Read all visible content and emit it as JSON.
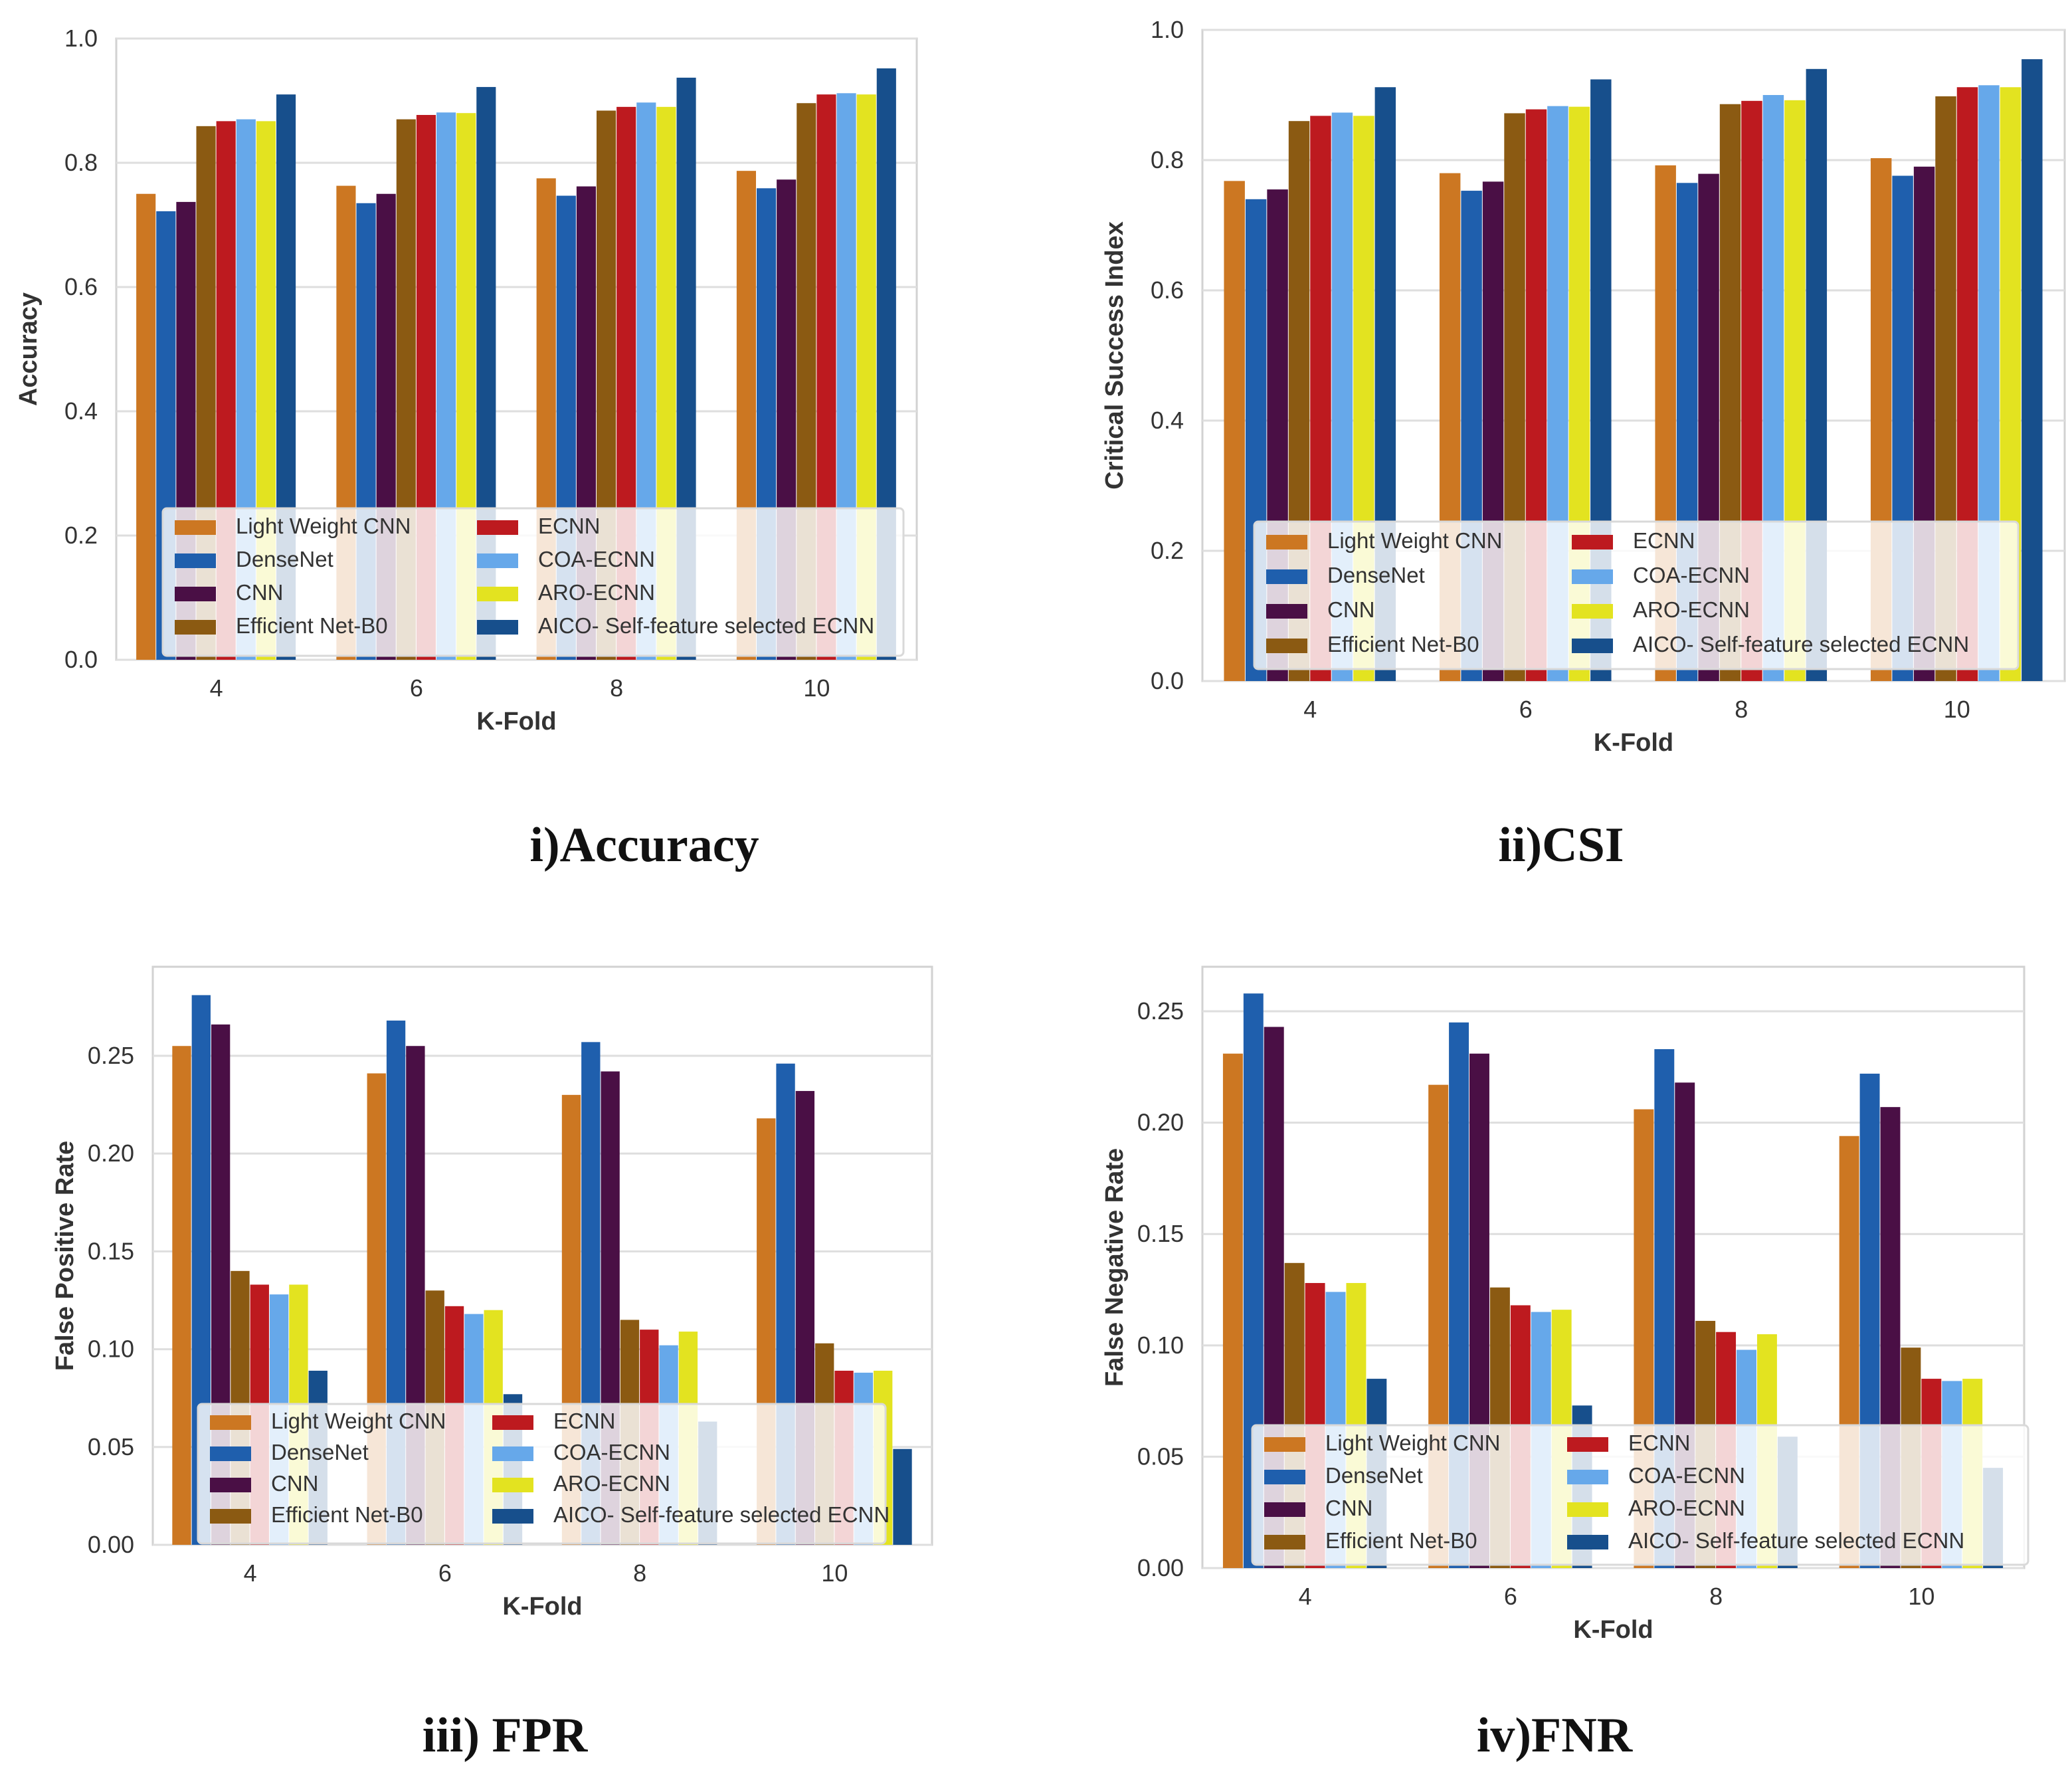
{
  "colors": {
    "Light Weight CNN": "#cc7722",
    "DenseNet": "#1f5fad",
    "CNN": "#4a0f45",
    "Efficient Net-B0": "#8b5a12",
    "ECNN": "#bd1a1f",
    "COA-ECNN": "#66a8ea",
    "ARO-ECNN": "#e3e320",
    "AICO- Self-feature selected ECNN": "#174f8c"
  },
  "chart_data": [
    {
      "id": "accuracy",
      "type": "bar",
      "caption": "i)Accuracy",
      "title": "",
      "xlabel": "K-Fold",
      "ylabel": "Accuracy",
      "categories": [
        "4",
        "6",
        "8",
        "10"
      ],
      "ylim": [
        0,
        1.0
      ],
      "yticks": [
        "0.0",
        "0.2",
        "0.4",
        "0.6",
        "0.8",
        "1.0"
      ],
      "grid": true,
      "legend_position": "lower-center",
      "legend_columns": [
        [
          "Light Weight CNN",
          "DenseNet",
          "CNN",
          "Efficient Net-B0"
        ],
        [
          "ECNN",
          "COA-ECNN",
          "ARO-ECNN",
          "AICO- Self-feature selected ECNN"
        ]
      ],
      "series": [
        {
          "name": "Light Weight CNN",
          "values": [
            0.75,
            0.763,
            0.775,
            0.787
          ]
        },
        {
          "name": "DenseNet",
          "values": [
            0.722,
            0.735,
            0.747,
            0.759
          ]
        },
        {
          "name": "CNN",
          "values": [
            0.737,
            0.75,
            0.762,
            0.773
          ]
        },
        {
          "name": "Efficient Net-B0",
          "values": [
            0.859,
            0.87,
            0.884,
            0.896
          ]
        },
        {
          "name": "ECNN",
          "values": [
            0.867,
            0.877,
            0.89,
            0.91
          ]
        },
        {
          "name": "COA-ECNN",
          "values": [
            0.87,
            0.881,
            0.897,
            0.912
          ]
        },
        {
          "name": "ARO-ECNN",
          "values": [
            0.867,
            0.88,
            0.89,
            0.91
          ]
        },
        {
          "name": "AICO- Self-feature selected ECNN",
          "values": [
            0.91,
            0.922,
            0.937,
            0.952
          ]
        }
      ]
    },
    {
      "id": "csi",
      "type": "bar",
      "caption": "ii)CSI",
      "title": "",
      "xlabel": "K-Fold",
      "ylabel": "Critical Success Index",
      "categories": [
        "4",
        "6",
        "8",
        "10"
      ],
      "ylim": [
        0,
        1.0
      ],
      "yticks": [
        "0.0",
        "0.2",
        "0.4",
        "0.6",
        "0.8",
        "1.0"
      ],
      "grid": true,
      "legend_position": "lower-center",
      "legend_columns": [
        [
          "Light Weight CNN",
          "DenseNet",
          "CNN",
          "Efficient Net-B0"
        ],
        [
          "ECNN",
          "COA-ECNN",
          "ARO-ECNN",
          "AICO- Self-feature selected ECNN"
        ]
      ],
      "series": [
        {
          "name": "Light Weight CNN",
          "values": [
            0.768,
            0.78,
            0.792,
            0.803
          ]
        },
        {
          "name": "DenseNet",
          "values": [
            0.74,
            0.753,
            0.765,
            0.776
          ]
        },
        {
          "name": "CNN",
          "values": [
            0.755,
            0.767,
            0.779,
            0.79
          ]
        },
        {
          "name": "Efficient Net-B0",
          "values": [
            0.86,
            0.872,
            0.886,
            0.898
          ]
        },
        {
          "name": "ECNN",
          "values": [
            0.868,
            0.878,
            0.891,
            0.912
          ]
        },
        {
          "name": "COA-ECNN",
          "values": [
            0.873,
            0.883,
            0.9,
            0.915
          ]
        },
        {
          "name": "ARO-ECNN",
          "values": [
            0.868,
            0.882,
            0.892,
            0.912
          ]
        },
        {
          "name": "AICO- Self-feature selected ECNN",
          "values": [
            0.912,
            0.924,
            0.94,
            0.955
          ]
        }
      ]
    },
    {
      "id": "fpr",
      "type": "bar",
      "caption": "iii) FPR",
      "title": "",
      "xlabel": "K-Fold",
      "ylabel": "False Positive Rate",
      "categories": [
        "4",
        "6",
        "8",
        "10"
      ],
      "ylim": [
        0,
        0.2955
      ],
      "yticks": [
        "0.00",
        "0.05",
        "0.10",
        "0.15",
        "0.20",
        "0.25"
      ],
      "grid": true,
      "legend_position": "lower-center",
      "legend_columns": [
        [
          "Light Weight CNN",
          "DenseNet",
          "CNN",
          "Efficient Net-B0"
        ],
        [
          "ECNN",
          "COA-ECNN",
          "ARO-ECNN",
          "AICO- Self-feature selected ECNN"
        ]
      ],
      "series": [
        {
          "name": "Light Weight CNN",
          "values": [
            0.255,
            0.241,
            0.23,
            0.218
          ]
        },
        {
          "name": "DenseNet",
          "values": [
            0.281,
            0.268,
            0.257,
            0.246
          ]
        },
        {
          "name": "CNN",
          "values": [
            0.266,
            0.255,
            0.242,
            0.232
          ]
        },
        {
          "name": "Efficient Net-B0",
          "values": [
            0.14,
            0.13,
            0.115,
            0.103
          ]
        },
        {
          "name": "ECNN",
          "values": [
            0.133,
            0.122,
            0.11,
            0.089
          ]
        },
        {
          "name": "COA-ECNN",
          "values": [
            0.128,
            0.118,
            0.102,
            0.088
          ]
        },
        {
          "name": "ARO-ECNN",
          "values": [
            0.133,
            0.12,
            0.109,
            0.089
          ]
        },
        {
          "name": "AICO- Self-feature selected ECNN",
          "values": [
            0.089,
            0.077,
            0.063,
            0.049
          ]
        }
      ]
    },
    {
      "id": "fnr",
      "type": "bar",
      "caption": "iv)FNR",
      "title": "",
      "xlabel": "K-Fold",
      "ylabel": "False Negative Rate",
      "categories": [
        "4",
        "6",
        "8",
        "10"
      ],
      "ylim": [
        0,
        0.27
      ],
      "yticks": [
        "0.00",
        "0.05",
        "0.10",
        "0.15",
        "0.20",
        "0.25"
      ],
      "grid": true,
      "legend_position": "lower-center",
      "legend_columns": [
        [
          "Light Weight CNN",
          "DenseNet",
          "CNN",
          "Efficient Net-B0"
        ],
        [
          "ECNN",
          "COA-ECNN",
          "ARO-ECNN",
          "AICO- Self-feature selected ECNN"
        ]
      ],
      "series": [
        {
          "name": "Light Weight CNN",
          "values": [
            0.231,
            0.217,
            0.206,
            0.194
          ]
        },
        {
          "name": "DenseNet",
          "values": [
            0.258,
            0.245,
            0.233,
            0.222
          ]
        },
        {
          "name": "CNN",
          "values": [
            0.243,
            0.231,
            0.218,
            0.207
          ]
        },
        {
          "name": "Efficient Net-B0",
          "values": [
            0.137,
            0.126,
            0.111,
            0.099
          ]
        },
        {
          "name": "ECNN",
          "values": [
            0.128,
            0.118,
            0.106,
            0.085
          ]
        },
        {
          "name": "COA-ECNN",
          "values": [
            0.124,
            0.115,
            0.098,
            0.084
          ]
        },
        {
          "name": "ARO-ECNN",
          "values": [
            0.128,
            0.116,
            0.105,
            0.085
          ]
        },
        {
          "name": "AICO- Self-feature selected ECNN",
          "values": [
            0.085,
            0.073,
            0.059,
            0.045
          ]
        }
      ]
    }
  ]
}
